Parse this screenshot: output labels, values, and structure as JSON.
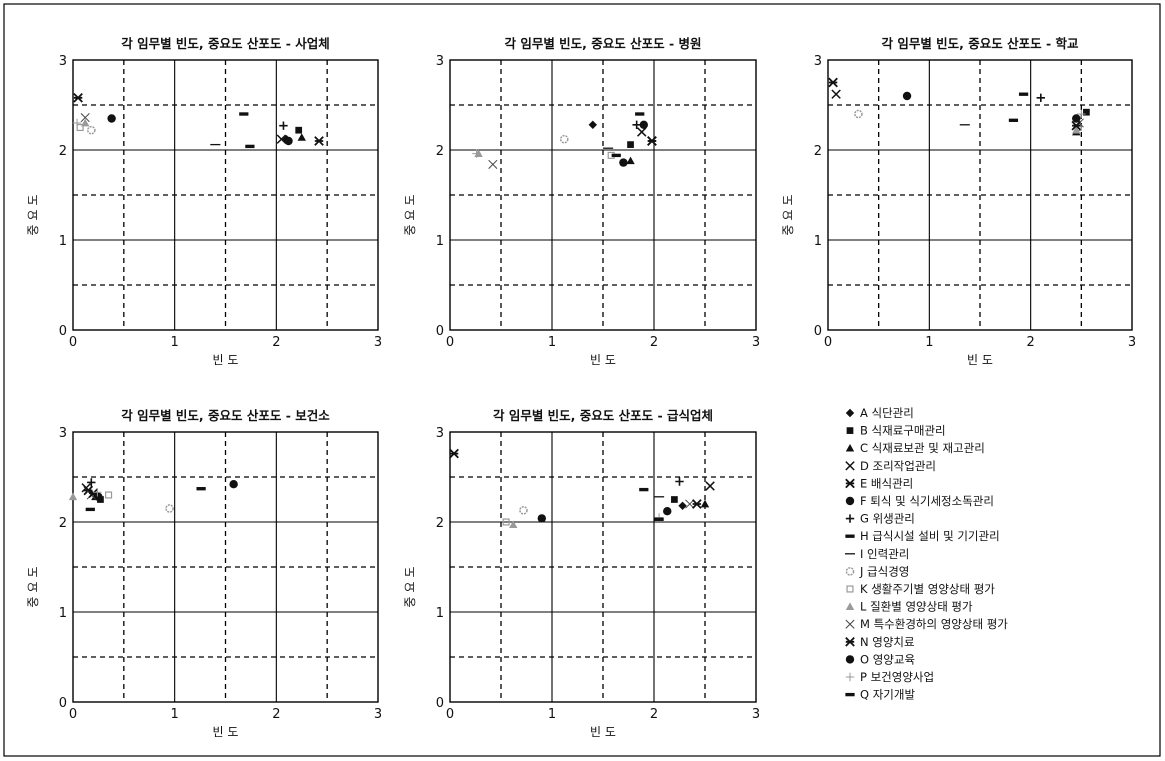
{
  "legend": [
    {
      "key": "A",
      "label": "A 식단관리",
      "marker": "diamond-filled"
    },
    {
      "key": "B",
      "label": "B 식재료구매관리",
      "marker": "square-filled"
    },
    {
      "key": "C",
      "label": "C 식재료보관 및 재고관리",
      "marker": "triangle-filled"
    },
    {
      "key": "D",
      "label": "D 조리작업관리",
      "marker": "x-cross"
    },
    {
      "key": "E",
      "label": "E 배식관리",
      "marker": "asterisk"
    },
    {
      "key": "F",
      "label": "F 퇴식 및 식기세정소독관리",
      "marker": "circle-filled"
    },
    {
      "key": "G",
      "label": "G 위생관리",
      "marker": "plus"
    },
    {
      "key": "H",
      "label": "H 급식시설 설비 및 기기관리",
      "marker": "bar-thick"
    },
    {
      "key": "I",
      "label": "I 인력관리",
      "marker": "dash"
    },
    {
      "key": "J",
      "label": "J 급식경영",
      "marker": "circle-light"
    },
    {
      "key": "K",
      "label": "K 생활주기별 영양상태 평가",
      "marker": "square-light"
    },
    {
      "key": "L",
      "label": "L 질환별 영양상태 평가",
      "marker": "triangle-light"
    },
    {
      "key": "M",
      "label": "M 특수환경하의 영양상태 평가",
      "marker": "x-thin"
    },
    {
      "key": "N",
      "label": "N 영양치료",
      "marker": "asterisk"
    },
    {
      "key": "O",
      "label": "O 영양교육",
      "marker": "circle-filled"
    },
    {
      "key": "P",
      "label": "P 보건영양사업",
      "marker": "plus-light"
    },
    {
      "key": "Q",
      "label": "Q 자기개발",
      "marker": "bar-thick"
    }
  ],
  "chart_data": [
    {
      "type": "scatter",
      "title": "각 임무별 빈도, 중요도 산포도 - 사업체",
      "xlabel": "빈 도",
      "ylabel": "중요도",
      "xlim": [
        0,
        3
      ],
      "ylim": [
        0,
        3
      ],
      "xticks": [
        "0",
        "1",
        "2",
        "3"
      ],
      "yticks": [
        "0",
        "1",
        "2",
        "3"
      ],
      "grid": true,
      "points": [
        {
          "key": "A",
          "x": 2.1,
          "y": 2.12
        },
        {
          "key": "B",
          "x": 2.22,
          "y": 2.22
        },
        {
          "key": "C",
          "x": 2.25,
          "y": 2.14
        },
        {
          "key": "D",
          "x": 2.05,
          "y": 2.12
        },
        {
          "key": "E",
          "x": 0.05,
          "y": 2.58
        },
        {
          "key": "F",
          "x": 2.12,
          "y": 2.1
        },
        {
          "key": "G",
          "x": 2.07,
          "y": 2.27
        },
        {
          "key": "H",
          "x": 1.68,
          "y": 2.4
        },
        {
          "key": "I",
          "x": 1.4,
          "y": 2.06
        },
        {
          "key": "J",
          "x": 0.18,
          "y": 2.22
        },
        {
          "key": "K",
          "x": 0.07,
          "y": 2.25
        },
        {
          "key": "L",
          "x": 0.12,
          "y": 2.3
        },
        {
          "key": "M",
          "x": 0.12,
          "y": 2.36
        },
        {
          "key": "N",
          "x": 2.42,
          "y": 2.1
        },
        {
          "key": "O",
          "x": 0.38,
          "y": 2.35
        },
        {
          "key": "P",
          "x": 0.04,
          "y": 2.3
        },
        {
          "key": "Q",
          "x": 1.74,
          "y": 2.04
        }
      ]
    },
    {
      "type": "scatter",
      "title": "각 임무별 빈도, 중요도 산포도 - 병원",
      "xlabel": "빈 도",
      "ylabel": "중요도",
      "xlim": [
        0,
        3
      ],
      "ylim": [
        0,
        3
      ],
      "xticks": [
        "0",
        "1",
        "2",
        "3"
      ],
      "yticks": [
        "0",
        "1",
        "2",
        "3"
      ],
      "grid": true,
      "points": [
        {
          "key": "A",
          "x": 1.4,
          "y": 2.28
        },
        {
          "key": "B",
          "x": 1.77,
          "y": 2.06
        },
        {
          "key": "C",
          "x": 1.77,
          "y": 1.88
        },
        {
          "key": "D",
          "x": 1.88,
          "y": 2.2
        },
        {
          "key": "E",
          "x": 1.98,
          "y": 2.1
        },
        {
          "key": "F",
          "x": 1.9,
          "y": 2.28
        },
        {
          "key": "G",
          "x": 1.83,
          "y": 2.28
        },
        {
          "key": "H",
          "x": 1.86,
          "y": 2.4
        },
        {
          "key": "I",
          "x": 1.55,
          "y": 2.02
        },
        {
          "key": "J",
          "x": 1.12,
          "y": 2.12
        },
        {
          "key": "K",
          "x": 1.58,
          "y": 1.94
        },
        {
          "key": "L",
          "x": 0.28,
          "y": 1.96
        },
        {
          "key": "M",
          "x": 0.42,
          "y": 1.84
        },
        {
          "key": "N",
          "x": 1.98,
          "y": 2.1
        },
        {
          "key": "O",
          "x": 1.7,
          "y": 1.86
        },
        {
          "key": "P",
          "x": 0.26,
          "y": 1.96
        },
        {
          "key": "Q",
          "x": 1.63,
          "y": 1.94
        }
      ]
    },
    {
      "type": "scatter",
      "title": "각 임무별 빈도, 중요도 산포도 - 학교",
      "xlabel": "빈 도",
      "ylabel": "중요도",
      "xlim": [
        0,
        3
      ],
      "ylim": [
        0,
        3
      ],
      "xticks": [
        "0",
        "1",
        "2",
        "3"
      ],
      "yticks": [
        "0",
        "1",
        "2",
        "3"
      ],
      "grid": true,
      "points": [
        {
          "key": "A",
          "x": 2.45,
          "y": 2.35
        },
        {
          "key": "B",
          "x": 2.55,
          "y": 2.42
        },
        {
          "key": "C",
          "x": 2.45,
          "y": 2.2
        },
        {
          "key": "D",
          "x": 0.08,
          "y": 2.62
        },
        {
          "key": "E",
          "x": 0.05,
          "y": 2.75
        },
        {
          "key": "F",
          "x": 0.78,
          "y": 2.6
        },
        {
          "key": "G",
          "x": 2.1,
          "y": 2.58
        },
        {
          "key": "H",
          "x": 1.93,
          "y": 2.62
        },
        {
          "key": "I",
          "x": 1.35,
          "y": 2.28
        },
        {
          "key": "J",
          "x": 0.3,
          "y": 2.4
        },
        {
          "key": "K",
          "x": 2.47,
          "y": 2.25
        },
        {
          "key": "L",
          "x": 2.45,
          "y": 2.22
        },
        {
          "key": "M",
          "x": 2.48,
          "y": 2.3
        },
        {
          "key": "N",
          "x": 2.45,
          "y": 2.27
        },
        {
          "key": "O",
          "x": 2.45,
          "y": 2.35
        },
        {
          "key": "P",
          "x": 2.5,
          "y": 2.4
        },
        {
          "key": "Q",
          "x": 1.83,
          "y": 2.33
        }
      ]
    },
    {
      "type": "scatter",
      "title": "각 임무별 빈도, 중요도 산포도 - 보건소",
      "xlabel": "빈 도",
      "ylabel": "중요도",
      "xlim": [
        0,
        3
      ],
      "ylim": [
        0,
        3
      ],
      "xticks": [
        "0",
        "1",
        "2",
        "3"
      ],
      "yticks": [
        "0",
        "1",
        "2",
        "3"
      ],
      "grid": true,
      "points": [
        {
          "key": "A",
          "x": 0.25,
          "y": 2.28
        },
        {
          "key": "B",
          "x": 0.27,
          "y": 2.25
        },
        {
          "key": "C",
          "x": 0.22,
          "y": 2.28
        },
        {
          "key": "D",
          "x": 0.13,
          "y": 2.38
        },
        {
          "key": "E",
          "x": 0.15,
          "y": 2.35
        },
        {
          "key": "F",
          "x": 0.25,
          "y": 2.28
        },
        {
          "key": "G",
          "x": 0.18,
          "y": 2.44
        },
        {
          "key": "H",
          "x": 0.17,
          "y": 2.14
        },
        {
          "key": "I",
          "x": 0.22,
          "y": 2.3
        },
        {
          "key": "J",
          "x": 0.95,
          "y": 2.15
        },
        {
          "key": "K",
          "x": 0.35,
          "y": 2.3
        },
        {
          "key": "L",
          "x": 0.0,
          "y": 2.28
        },
        {
          "key": "M",
          "x": 0.18,
          "y": 2.3
        },
        {
          "key": "N",
          "x": 0.2,
          "y": 2.32
        },
        {
          "key": "O",
          "x": 1.58,
          "y": 2.42
        },
        {
          "key": "P",
          "x": 0.24,
          "y": 2.33
        },
        {
          "key": "Q",
          "x": 1.26,
          "y": 2.37
        }
      ]
    },
    {
      "type": "scatter",
      "title": "각 임무별 빈도, 중요도 산포도 - 급식업체",
      "xlabel": "빈 도",
      "ylabel": "중요도",
      "xlim": [
        0,
        3
      ],
      "ylim": [
        0,
        3
      ],
      "xticks": [
        "0",
        "1",
        "2",
        "3"
      ],
      "yticks": [
        "0",
        "1",
        "2",
        "3"
      ],
      "grid": true,
      "points": [
        {
          "key": "A",
          "x": 2.28,
          "y": 2.18
        },
        {
          "key": "B",
          "x": 2.2,
          "y": 2.25
        },
        {
          "key": "C",
          "x": 2.5,
          "y": 2.2
        },
        {
          "key": "D",
          "x": 2.55,
          "y": 2.4
        },
        {
          "key": "E",
          "x": 0.04,
          "y": 2.76
        },
        {
          "key": "F",
          "x": 2.13,
          "y": 2.12
        },
        {
          "key": "G",
          "x": 2.25,
          "y": 2.45
        },
        {
          "key": "H",
          "x": 1.9,
          "y": 2.36
        },
        {
          "key": "I",
          "x": 2.05,
          "y": 2.28
        },
        {
          "key": "J",
          "x": 0.72,
          "y": 2.13
        },
        {
          "key": "K",
          "x": 0.55,
          "y": 2.0
        },
        {
          "key": "L",
          "x": 0.62,
          "y": 1.97
        },
        {
          "key": "M",
          "x": 2.35,
          "y": 2.2
        },
        {
          "key": "N",
          "x": 2.42,
          "y": 2.2
        },
        {
          "key": "O",
          "x": 0.9,
          "y": 2.04
        },
        {
          "key": "P",
          "x": 2.05,
          "y": 2.05
        },
        {
          "key": "Q",
          "x": 2.05,
          "y": 2.03
        }
      ]
    }
  ]
}
